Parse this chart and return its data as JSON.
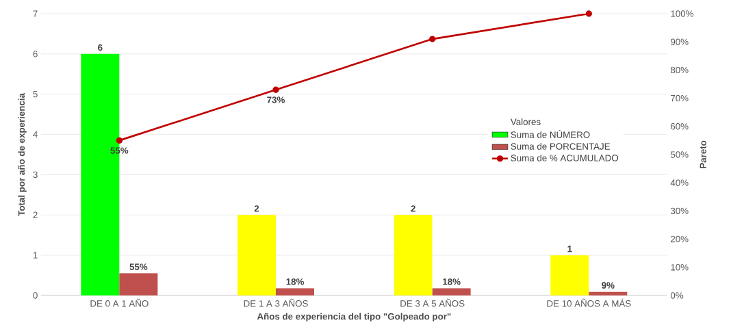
{
  "chart_data": {
    "type": "bar",
    "xlabel": "Años de experiencia del tipo \"Golpeado por\"",
    "ylabel": "Total por año de experiencia",
    "y2label": "Pareto",
    "legend_title": "Valores",
    "categories": [
      "DE 0 A 1 AÑO",
      "DE 1 A 3 AÑOS",
      "DE 3 A 5 AÑOS",
      "DE 10 AÑOS A MÁS"
    ],
    "series": [
      {
        "name": "Suma de NÚMERO",
        "colors": [
          "#00ff00",
          "#ffff00",
          "#ffff00",
          "#ffff00"
        ],
        "values": [
          6,
          2,
          2,
          1
        ],
        "value_labels": [
          "6",
          "2",
          "2",
          "1"
        ]
      },
      {
        "name": "Suma de PORCENTAJE",
        "color": "#c0504d",
        "values": [
          0.55,
          0.18,
          0.18,
          0.09
        ],
        "value_labels": [
          "55%",
          "18%",
          "18%",
          "9%"
        ]
      },
      {
        "name": "Suma de % ACUMULADO",
        "type": "line",
        "axis": "y2",
        "color": "#c00000",
        "values": [
          55,
          73,
          91,
          100
        ],
        "value_labels": [
          "55%",
          "73%",
          null,
          null
        ]
      }
    ],
    "ylim": [
      0,
      7
    ],
    "yticks": [
      0,
      1,
      2,
      3,
      4,
      5,
      6,
      7
    ],
    "y2lim": [
      0,
      100
    ],
    "y2ticks": [
      {
        "value": 0,
        "label": "0%"
      },
      {
        "value": 10,
        "label": "10%"
      },
      {
        "value": 20,
        "label": "20%"
      },
      {
        "value": 30,
        "label": "30%"
      },
      {
        "value": 40,
        "label": "40%"
      },
      {
        "value": 50,
        "label": "50%"
      },
      {
        "value": 60,
        "label": "60%"
      },
      {
        "value": 70,
        "label": "70%"
      },
      {
        "value": 80,
        "label": "80%"
      },
      {
        "value": 90,
        "label": "90%"
      },
      {
        "value": 100,
        "label": "100%"
      }
    ],
    "grid": "y",
    "legend": "right",
    "marker": "circle"
  }
}
